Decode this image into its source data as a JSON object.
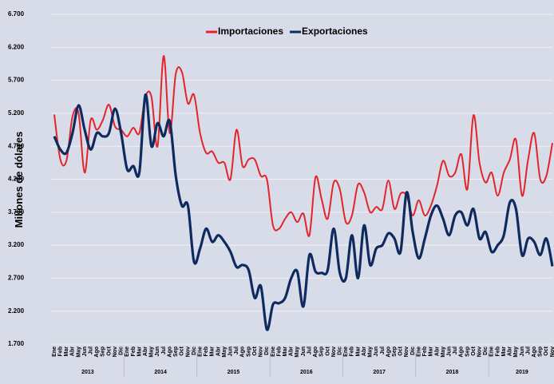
{
  "chart_data": {
    "type": "line",
    "y_label": "Millones de dólares",
    "categories": [
      "Ene",
      "Feb",
      "Mar",
      "Abr",
      "May",
      "Jun",
      "Jul",
      "Ago",
      "Sep",
      "Oct",
      "Nov",
      "Dic",
      "Ene",
      "Feb",
      "Mar",
      "Abr",
      "May",
      "Jun",
      "Jul",
      "Ago",
      "Sep",
      "Oct",
      "Nov",
      "Dic",
      "Ene",
      "Feb",
      "Mar",
      "Abr",
      "May",
      "Jun",
      "Jul",
      "Ago",
      "Sep",
      "Oct",
      "Nov",
      "Dic",
      "Ene",
      "Feb",
      "Mar",
      "Abr",
      "May",
      "Jun",
      "Jul",
      "Ago",
      "Sep",
      "Oct",
      "Nov",
      "Dic",
      "Ene",
      "Feb",
      "Mar",
      "Abr",
      "May",
      "Jun",
      "Jul",
      "Ago",
      "Sep",
      "Oct",
      "Nov",
      "Dic",
      "Ene",
      "Feb",
      "Mar",
      "Abr",
      "May",
      "Jun",
      "Jul",
      "Ago",
      "Sep",
      "Oct",
      "Nov",
      "Dic",
      "Ene",
      "Feb",
      "Mar",
      "Abr",
      "May",
      "Jun",
      "Jul",
      "Ago",
      "Sep",
      "Oct",
      "Nov"
    ],
    "years": [
      "2013",
      "2014",
      "2015",
      "2016",
      "2017",
      "2018",
      "2019"
    ],
    "series": [
      {
        "name": "Importaciones",
        "color": "#e3242b",
        "values": [
          5180,
          4500,
          4480,
          5150,
          5200,
          4300,
          5100,
          4950,
          5100,
          5330,
          5000,
          4950,
          4850,
          4980,
          4900,
          5450,
          5450,
          4700,
          6070,
          4900,
          5800,
          5830,
          5350,
          5480,
          4900,
          4600,
          4620,
          4450,
          4450,
          4200,
          4950,
          4400,
          4500,
          4500,
          4250,
          4200,
          3500,
          3450,
          3600,
          3700,
          3550,
          3680,
          3350,
          4230,
          3900,
          3600,
          4150,
          4050,
          3550,
          3650,
          4120,
          4000,
          3700,
          3780,
          3750,
          4180,
          3750,
          3980,
          3950,
          3650,
          3880,
          3650,
          3800,
          4100,
          4480,
          4250,
          4300,
          4580,
          4050,
          5170,
          4450,
          4150,
          4300,
          3950,
          4300,
          4500,
          4800,
          3950,
          4500,
          4900,
          4200,
          4250,
          4750
        ]
      },
      {
        "name": "Exportaciones",
        "color": "#0f2a5e",
        "values": [
          4850,
          4650,
          4600,
          4900,
          5320,
          4950,
          4650,
          4900,
          4850,
          4900,
          5270,
          4900,
          4350,
          4400,
          4300,
          5480,
          4700,
          5050,
          4850,
          5080,
          4250,
          3800,
          3800,
          2950,
          3150,
          3450,
          3250,
          3350,
          3250,
          3100,
          2870,
          2900,
          2820,
          2400,
          2580,
          1920,
          2300,
          2320,
          2400,
          2700,
          2800,
          2270,
          3050,
          2800,
          2780,
          2820,
          3450,
          2780,
          2700,
          3350,
          2700,
          3500,
          2900,
          3150,
          3200,
          3380,
          3300,
          3100,
          4000,
          3400,
          3000,
          3300,
          3650,
          3800,
          3600,
          3350,
          3650,
          3700,
          3500,
          3750,
          3300,
          3400,
          3100,
          3200,
          3350,
          3850,
          3750,
          3050,
          3300,
          3250,
          3050,
          3300,
          2880
        ]
      }
    ],
    "ylim": [
      1700,
      6700
    ],
    "yticks": [
      {
        "value": 1700,
        "label": "1.700"
      },
      {
        "value": 2200,
        "label": "2.200"
      },
      {
        "value": 2700,
        "label": "2.700"
      },
      {
        "value": 3200,
        "label": "3.200"
      },
      {
        "value": 3700,
        "label": "3.700"
      },
      {
        "value": 4200,
        "label": "4.200"
      },
      {
        "value": 4700,
        "label": "4.700"
      },
      {
        "value": 5200,
        "label": "5.200"
      },
      {
        "value": 5700,
        "label": "5.700"
      },
      {
        "value": 6200,
        "label": "6.200"
      },
      {
        "value": 6700,
        "label": "6.700"
      }
    ],
    "grid": true
  }
}
